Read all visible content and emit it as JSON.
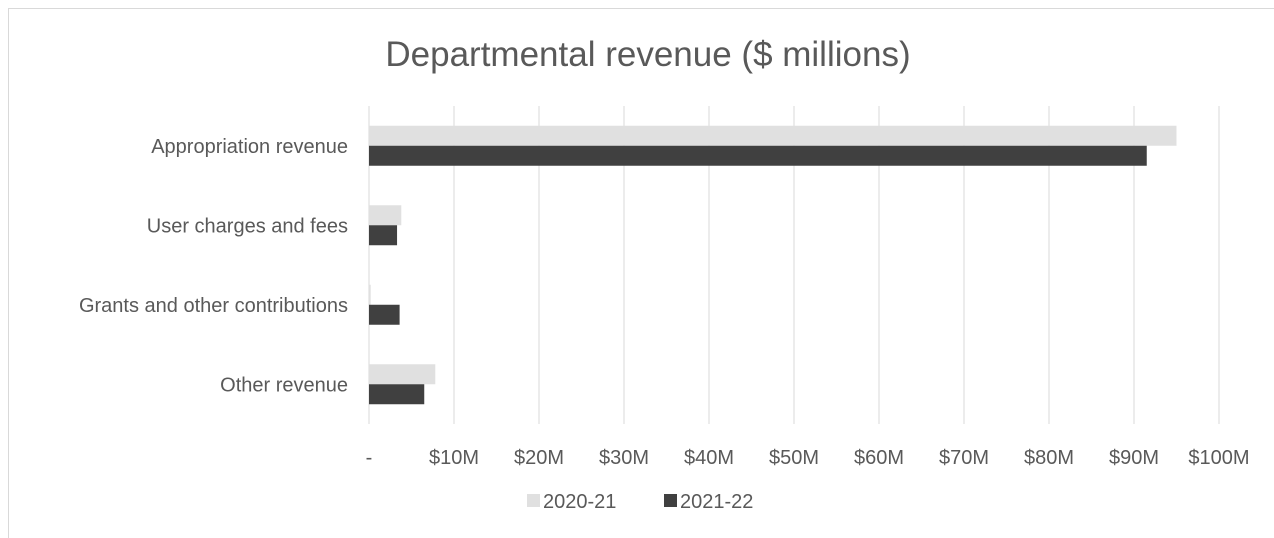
{
  "chart_data": {
    "type": "bar",
    "orientation": "horizontal",
    "title": "Departmental revenue ($ millions)",
    "categories": [
      "Appropriation revenue",
      "User charges and fees",
      "Grants and other contributions",
      "Other revenue"
    ],
    "series": [
      {
        "name": "2020-21",
        "color": "#e0e0e0",
        "values": [
          95.0,
          3.8,
          0.2,
          7.8
        ]
      },
      {
        "name": "2021-22",
        "color": "#404040",
        "values": [
          91.5,
          3.3,
          3.6,
          6.5
        ]
      }
    ],
    "xlim": [
      0,
      100
    ],
    "x_ticks": [
      0,
      10,
      20,
      30,
      40,
      50,
      60,
      70,
      80,
      90,
      100
    ],
    "x_tick_labels": [
      "-",
      "$10M",
      "$20M",
      "$30M",
      "$40M",
      "$50M",
      "$60M",
      "$70M",
      "$80M",
      "$90M",
      "$100M"
    ],
    "grid": "vertical",
    "legend": "bottom"
  }
}
